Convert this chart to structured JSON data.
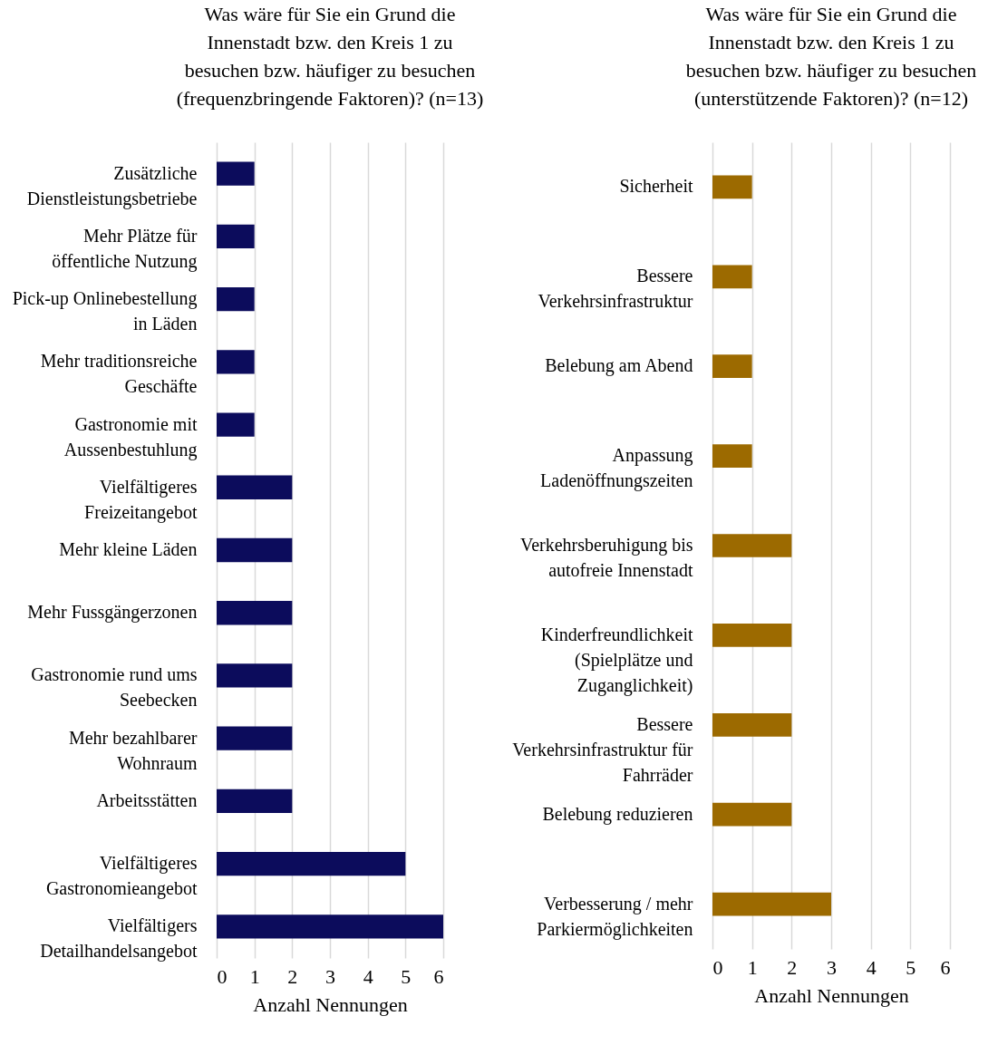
{
  "chart_data": [
    {
      "type": "bar",
      "orientation": "horizontal",
      "title": "Was wäre für Sie ein Grund die\nInnenstadt bzw. den Kreis 1 zu\nbesuchen bzw. häufiger zu besuchen\n(frequenzbringende Faktoren)? (n=13)",
      "xlabel": "Anzahl Nennungen",
      "categories": [
        "Zusätzliche\nDienstleistungsbetriebe",
        "Mehr Plätze für\nöffentliche Nutzung",
        "Pick-up Onlinebestellung\nin Läden",
        "Mehr traditionsreiche\nGeschäfte",
        "Gastronomie mit\nAussenbestuhlung",
        "Vielfältigeres\nFreizeitangebot",
        "Mehr kleine Läden",
        "Mehr Fussgängerzonen",
        "Gastronomie rund ums\nSeebecken",
        "Mehr bezahlbarer\nWohnraum",
        "Arbeitsstätten",
        "Vielfältigeres\nGastronomieangebot",
        "Vielfältigers\nDetailhandelsangebot"
      ],
      "values": [
        1,
        1,
        1,
        1,
        1,
        2,
        2,
        2,
        2,
        2,
        2,
        5,
        6
      ],
      "color": "#0c0c5c",
      "xlim": [
        0,
        6
      ],
      "xticks": [
        0,
        1,
        2,
        3,
        4,
        5,
        6
      ],
      "grid": "x"
    },
    {
      "type": "bar",
      "orientation": "horizontal",
      "title": "Was wäre für Sie ein Grund die\nInnenstadt bzw. den Kreis 1 zu\nbesuchen bzw. häufiger zu besuchen\n(unterstützende Faktoren)? (n=12)",
      "xlabel": "Anzahl Nennungen",
      "categories": [
        "Sicherheit",
        "Bessere\nVerkehrsinfrastruktur",
        "Belebung am Abend",
        "Anpassung\nLadenöffnungszeiten",
        "Verkehrsberuhigung bis\nautofreie Innenstadt",
        "Kinderfreundlichkeit\n(Spielplätze und\nZuganglichkeit)",
        "Bessere\nVerkehrsinfrastruktur für\nFahrräder",
        "Belebung reduzieren",
        "Verbesserung / mehr\nParkiermöglichkeiten"
      ],
      "values": [
        1,
        1,
        1,
        1,
        2,
        2,
        2,
        2,
        3
      ],
      "color": "#9c6a00",
      "xlim": [
        0,
        6
      ],
      "xticks": [
        0,
        1,
        2,
        3,
        4,
        5,
        6
      ],
      "grid": "x"
    }
  ]
}
